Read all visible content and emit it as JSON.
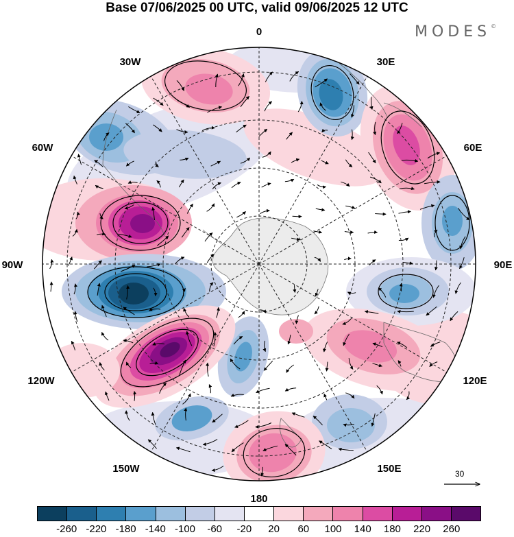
{
  "title": "Base 07/06/2025 00 UTC, valid 09/06/2025 12 UTC",
  "brand": "MODES",
  "brand_mark": "©",
  "longitude_labels": {
    "lon_0": "0",
    "lon_30e": "30E",
    "lon_60e": "60E",
    "lon_90e": "90E",
    "lon_120e": "120E",
    "lon_150e": "150E",
    "lon_180": "180",
    "lon_150w": "150W",
    "lon_120w": "120W",
    "lon_90w": "90W",
    "lon_60w": "60W",
    "lon_30w": "30W"
  },
  "reference_vector_value": "30",
  "colorbar": {
    "colors": [
      "#0c3f5e",
      "#1a5f8c",
      "#2e7fb0",
      "#5a9fcd",
      "#9cbfdf",
      "#c2cde6",
      "#e4e4f2",
      "#ffffff",
      "#fbd7de",
      "#f4a9bc",
      "#ee83ac",
      "#dc4ca3",
      "#b81e96",
      "#8a0f86",
      "#5a0a6a"
    ],
    "tick_labels": [
      "-260",
      "-220",
      "-180",
      "-140",
      "-100",
      "-60",
      "-20",
      "20",
      "60",
      "100",
      "140",
      "180",
      "220",
      "260"
    ]
  },
  "field_colors": {
    "neg_260": "#0c3f5e",
    "neg_220": "#1a5f8c",
    "neg_180": "#2e7fb0",
    "neg_140": "#5a9fcd",
    "neg_100": "#9cbfdf",
    "neg_60": "#c2cde6",
    "neg_20": "#e4e4f2",
    "pos_60": "#fbd7de",
    "pos_100": "#f4a9bc",
    "pos_140": "#ee83ac",
    "pos_180": "#dc4ca3",
    "pos_220": "#b81e96",
    "pos_260": "#8a0f86",
    "pos_max": "#5a0a6a",
    "antarctica": "#ececec"
  }
}
